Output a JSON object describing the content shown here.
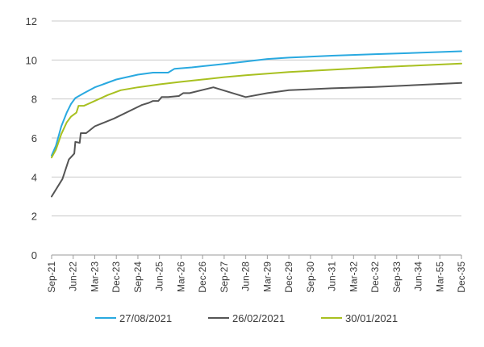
{
  "chart_data": {
    "type": "line",
    "title": "",
    "xlabel": "",
    "ylabel": "",
    "ylim": [
      0,
      12
    ],
    "yticks": [
      "0",
      "2",
      "4",
      "6",
      "8",
      "10",
      "12"
    ],
    "x_tick_labels": [
      "Sep-21",
      "Jun-22",
      "Mar-23",
      "Dec-23",
      "Sep-24",
      "Jun-25",
      "Mar-26",
      "Dec-26",
      "Sep-27",
      "Jun-28",
      "Mar-29",
      "Dec-29",
      "Sep-30",
      "Jun-31",
      "Mar-32",
      "Dec-32",
      "Sep-33",
      "Jun-34",
      "Mar-55",
      "Dec-35"
    ],
    "grid": true,
    "legend_position": "bottom",
    "series": [
      {
        "name": "27/08/2021",
        "color": "#29a9e0",
        "points": [
          [
            0,
            5.1
          ],
          [
            0.2,
            5.6
          ],
          [
            0.45,
            6.6
          ],
          [
            0.7,
            7.3
          ],
          [
            0.9,
            7.75
          ],
          [
            1.1,
            8.05
          ],
          [
            1.5,
            8.3
          ],
          [
            2,
            8.6
          ],
          [
            3,
            9.0
          ],
          [
            4,
            9.25
          ],
          [
            4.7,
            9.35
          ],
          [
            5.4,
            9.35
          ],
          [
            5.7,
            9.55
          ],
          [
            6.5,
            9.62
          ],
          [
            8,
            9.8
          ],
          [
            9,
            9.92
          ],
          [
            10,
            10.05
          ],
          [
            11,
            10.12
          ],
          [
            13,
            10.22
          ],
          [
            15,
            10.3
          ],
          [
            17,
            10.37
          ],
          [
            19,
            10.45
          ]
        ]
      },
      {
        "name": "26/02/2021",
        "color": "#555555",
        "points": [
          [
            0,
            3.0
          ],
          [
            0.5,
            3.9
          ],
          [
            0.8,
            4.9
          ],
          [
            1.05,
            5.2
          ],
          [
            1.1,
            5.8
          ],
          [
            1.3,
            5.75
          ],
          [
            1.35,
            6.25
          ],
          [
            1.6,
            6.25
          ],
          [
            2,
            6.6
          ],
          [
            2.9,
            7.0
          ],
          [
            4.2,
            7.7
          ],
          [
            4.5,
            7.8
          ],
          [
            4.7,
            7.9
          ],
          [
            4.95,
            7.9
          ],
          [
            5.1,
            8.1
          ],
          [
            5.4,
            8.1
          ],
          [
            5.9,
            8.15
          ],
          [
            6.1,
            8.3
          ],
          [
            6.4,
            8.3
          ],
          [
            7.5,
            8.6
          ],
          [
            9,
            8.1
          ],
          [
            10,
            8.3
          ],
          [
            11,
            8.45
          ],
          [
            13,
            8.55
          ],
          [
            15,
            8.62
          ],
          [
            17,
            8.72
          ],
          [
            19,
            8.82
          ]
        ]
      },
      {
        "name": "30/01/2021",
        "color": "#a8c020",
        "points": [
          [
            0,
            5.0
          ],
          [
            0.2,
            5.4
          ],
          [
            0.45,
            6.2
          ],
          [
            0.7,
            6.8
          ],
          [
            0.9,
            7.1
          ],
          [
            1.15,
            7.3
          ],
          [
            1.25,
            7.65
          ],
          [
            1.5,
            7.65
          ],
          [
            2,
            7.9
          ],
          [
            2.6,
            8.2
          ],
          [
            3.2,
            8.45
          ],
          [
            4,
            8.6
          ],
          [
            5,
            8.75
          ],
          [
            6,
            8.88
          ],
          [
            7,
            9.0
          ],
          [
            8,
            9.12
          ],
          [
            9,
            9.22
          ],
          [
            10,
            9.3
          ],
          [
            11,
            9.38
          ],
          [
            13,
            9.5
          ],
          [
            15,
            9.62
          ],
          [
            17,
            9.72
          ],
          [
            19,
            9.82
          ]
        ]
      }
    ]
  }
}
